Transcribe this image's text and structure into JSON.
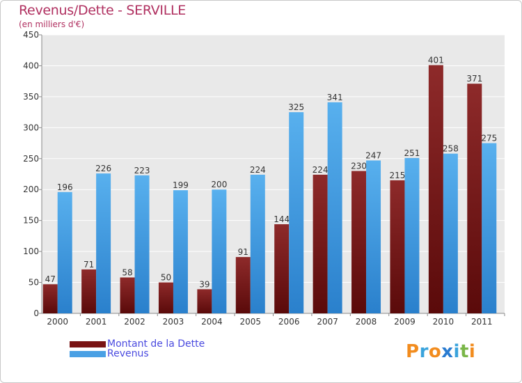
{
  "title": "Revenus/Dette - SERVILLE",
  "subtitle": "(en milliers d'€)",
  "legend": [
    {
      "label": "Montant de la Dette",
      "color": "#7a1414"
    },
    {
      "label": "Revenus",
      "color": "#4aa0e4"
    }
  ],
  "logo": {
    "text": "Proxiti",
    "letters": [
      {
        "ch": "P",
        "color": "#f28c1e"
      },
      {
        "ch": "r",
        "color": "#3aa3dc"
      },
      {
        "ch": "o",
        "color": "#f28c1e"
      },
      {
        "ch": "x",
        "color": "#2a7bd0"
      },
      {
        "ch": "i",
        "color": "#3aa3dc"
      },
      {
        "ch": "t",
        "color": "#7ab648"
      },
      {
        "ch": "i",
        "color": "#f28c1e"
      }
    ]
  },
  "chart_data": {
    "type": "bar",
    "categories": [
      "2000",
      "2001",
      "2002",
      "2003",
      "2004",
      "2005",
      "2006",
      "2007",
      "2008",
      "2009",
      "2010",
      "2011"
    ],
    "series": [
      {
        "name": "Montant de la Dette",
        "color": "#7a1414",
        "values": [
          47,
          71,
          58,
          50,
          39,
          91,
          144,
          224,
          230,
          215,
          401,
          371
        ]
      },
      {
        "name": "Revenus",
        "color": "#4aa0e4",
        "values": [
          196,
          226,
          223,
          199,
          200,
          224,
          325,
          341,
          247,
          251,
          258,
          275
        ]
      }
    ],
    "ylim": [
      0,
      450
    ],
    "yticks": [
      0,
      50,
      100,
      150,
      200,
      250,
      300,
      350,
      400,
      450
    ],
    "grid": true,
    "legend_position": "bottom-left"
  }
}
